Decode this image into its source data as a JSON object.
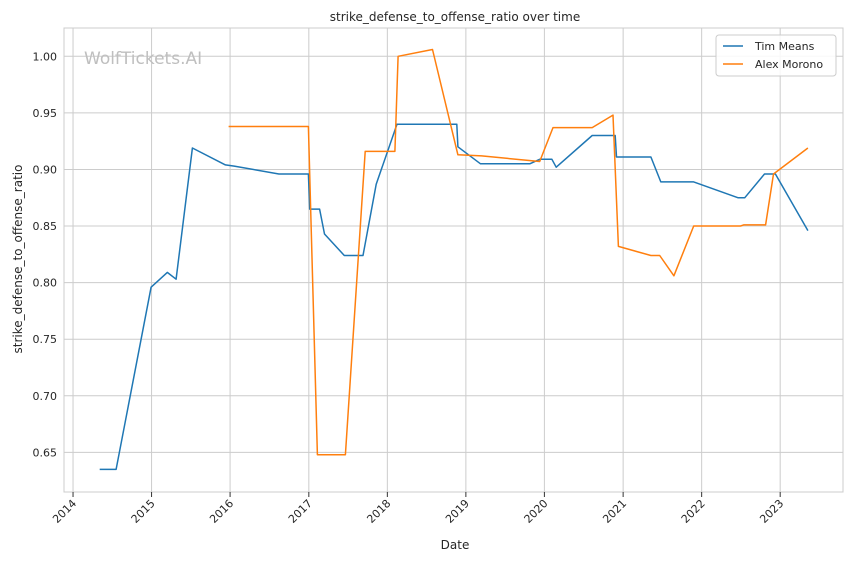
{
  "chart_data": {
    "type": "line",
    "title": "strike_defense_to_offense_ratio over time",
    "xlabel": "Date",
    "ylabel": "strike_defense_to_offense_ratio",
    "watermark": "WolfTickets.AI",
    "x_ticks": [
      "2014",
      "2015",
      "2016",
      "2017",
      "2018",
      "2019",
      "2020",
      "2021",
      "2022",
      "2023"
    ],
    "y_ticks": [
      "0.65",
      "0.70",
      "0.75",
      "0.80",
      "0.85",
      "0.90",
      "0.95",
      "1.00"
    ],
    "xlim": [
      "2013-11-20",
      "2023-10-20"
    ],
    "ylim": [
      0.615,
      1.025
    ],
    "grid": true,
    "legend_position": "top-right",
    "series": [
      {
        "name": "Tim Means",
        "color": "#1f77b4",
        "points": [
          [
            "2014-05-05",
            0.635
          ],
          [
            "2014-07-20",
            0.635
          ],
          [
            "2014-12-30",
            0.796
          ],
          [
            "2015-03-15",
            0.809
          ],
          [
            "2015-04-25",
            0.803
          ],
          [
            "2015-07-10",
            0.919
          ],
          [
            "2015-12-10",
            0.904
          ],
          [
            "2016-01-20",
            0.903
          ],
          [
            "2016-08-15",
            0.896
          ],
          [
            "2016-12-30",
            0.896
          ],
          [
            "2017-01-05",
            0.865
          ],
          [
            "2017-02-20",
            0.865
          ],
          [
            "2017-03-15",
            0.843
          ],
          [
            "2017-06-15",
            0.824
          ],
          [
            "2017-09-10",
            0.824
          ],
          [
            "2017-11-10",
            0.887
          ],
          [
            "2018-02-15",
            0.94
          ],
          [
            "2018-11-20",
            0.94
          ],
          [
            "2018-11-25",
            0.92
          ],
          [
            "2019-03-10",
            0.905
          ],
          [
            "2019-10-25",
            0.905
          ],
          [
            "2019-12-10",
            0.909
          ],
          [
            "2020-02-05",
            0.909
          ],
          [
            "2020-02-25",
            0.902
          ],
          [
            "2020-08-10",
            0.93
          ],
          [
            "2020-11-25",
            0.93
          ],
          [
            "2020-12-01",
            0.911
          ],
          [
            "2021-05-10",
            0.911
          ],
          [
            "2021-06-25",
            0.889
          ],
          [
            "2021-11-25",
            0.889
          ],
          [
            "2022-06-20",
            0.875
          ],
          [
            "2022-07-20",
            0.875
          ],
          [
            "2022-10-20",
            0.896
          ],
          [
            "2022-12-10",
            0.896
          ],
          [
            "2023-05-10",
            0.846
          ]
        ]
      },
      {
        "name": "Alex Morono",
        "color": "#ff7f0e",
        "points": [
          [
            "2015-12-25",
            0.938
          ],
          [
            "2016-12-30",
            0.938
          ],
          [
            "2017-02-10",
            0.648
          ],
          [
            "2017-06-20",
            0.648
          ],
          [
            "2017-09-20",
            0.916
          ],
          [
            "2018-02-05",
            0.916
          ],
          [
            "2018-02-20",
            1.0
          ],
          [
            "2018-07-30",
            1.006
          ],
          [
            "2018-11-25",
            0.913
          ],
          [
            "2019-03-15",
            0.912
          ],
          [
            "2019-12-10",
            0.907
          ],
          [
            "2020-02-10",
            0.937
          ],
          [
            "2020-08-10",
            0.937
          ],
          [
            "2020-11-15",
            0.948
          ],
          [
            "2020-12-10",
            0.832
          ],
          [
            "2021-05-10",
            0.824
          ],
          [
            "2021-06-20",
            0.824
          ],
          [
            "2021-08-25",
            0.806
          ],
          [
            "2021-11-25",
            0.85
          ],
          [
            "2022-07-01",
            0.85
          ],
          [
            "2022-07-15",
            0.851
          ],
          [
            "2022-10-25",
            0.851
          ],
          [
            "2022-12-01",
            0.896
          ],
          [
            "2023-05-10",
            0.919
          ]
        ]
      }
    ]
  }
}
